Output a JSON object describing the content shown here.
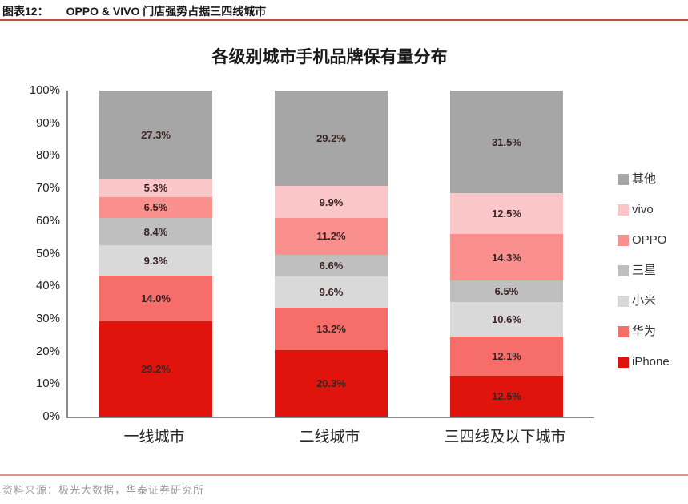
{
  "header": {
    "label": "图表12：",
    "title": "OPPO & VIVO 门店强势占据三四线城市"
  },
  "footer": {
    "source": "资料来源：极光大数据，华泰证券研究所"
  },
  "chart_data": {
    "type": "bar",
    "stacked": true,
    "title": "各级别城市手机品牌保有量分布",
    "categories": [
      "一线城市",
      "二线城市",
      "三四线及以下城市"
    ],
    "series": [
      {
        "name": "iPhone",
        "color": "#E0140C",
        "values": [
          29.2,
          20.3,
          12.5
        ]
      },
      {
        "name": "华为",
        "color": "#F66D6A",
        "values": [
          14.0,
          13.2,
          12.1
        ]
      },
      {
        "name": "小米",
        "color": "#D9D9D9",
        "values": [
          9.3,
          9.6,
          10.6
        ]
      },
      {
        "name": "三星",
        "color": "#BFBFBF",
        "values": [
          8.4,
          6.6,
          6.5
        ]
      },
      {
        "name": "OPPO",
        "color": "#F9908E",
        "values": [
          6.5,
          11.2,
          14.3
        ]
      },
      {
        "name": "vivo",
        "color": "#FAC6C8",
        "values": [
          5.3,
          9.9,
          12.5
        ]
      },
      {
        "name": "其他",
        "color": "#A6A6A6",
        "values": [
          27.3,
          29.2,
          31.5
        ]
      }
    ],
    "data_labels": [
      [
        "29.2%",
        "20.3%",
        "12.5%"
      ],
      [
        "14.0%",
        "13.2%",
        "12.1%"
      ],
      [
        "9.3%",
        "9.6%",
        "10.6%"
      ],
      [
        "8.4%",
        "6.6%",
        "6.5%"
      ],
      [
        "6.5%",
        "11.2%",
        "14.3%"
      ],
      [
        "5.3%",
        "9.9%",
        "12.5%"
      ],
      [
        "27.3%",
        "29.2%",
        "31.5%"
      ]
    ],
    "y_ticks": [
      "0%",
      "10%",
      "20%",
      "30%",
      "40%",
      "50%",
      "60%",
      "70%",
      "80%",
      "90%",
      "100%"
    ],
    "ylim": [
      0,
      100
    ],
    "grid": false,
    "legend_position": "right",
    "legend_order": [
      "其他",
      "vivo",
      "OPPO",
      "三星",
      "小米",
      "华为",
      "iPhone"
    ]
  },
  "colors": {
    "header_rule": "#C64A42",
    "footer_rule": "#E5928E",
    "axis": "#8C8C8C"
  }
}
